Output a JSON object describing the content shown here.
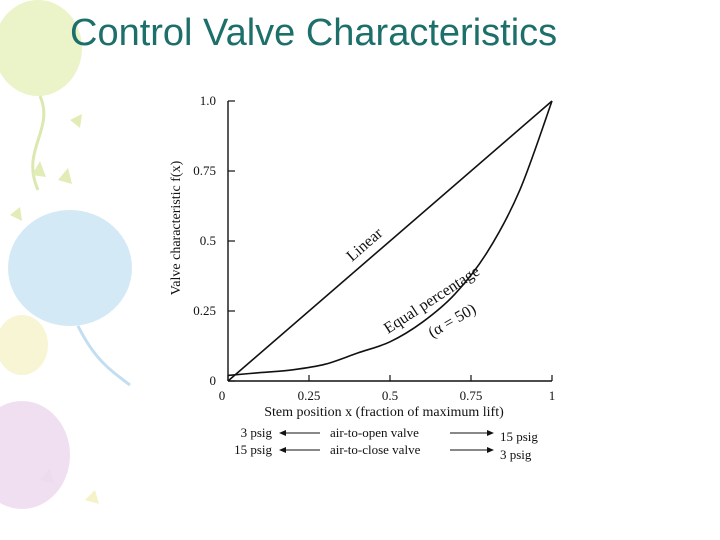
{
  "slide": {
    "title": "Control Valve Characteristics",
    "decoration_colors": {
      "green": "#e7f1bf",
      "blue": "#cfe7f5",
      "purple": "#eddcf0",
      "yellow": "#f5f2c8"
    }
  },
  "chart_data": {
    "type": "line",
    "title": "",
    "xlabel": "Stem position x (fraction of maximum lift)",
    "ylabel": "Valve characteristic f(x)",
    "xlim": [
      0,
      1
    ],
    "ylim": [
      0,
      1
    ],
    "x_ticks": [
      0,
      0.25,
      0.5,
      0.75,
      1
    ],
    "x_tick_labels": [
      "0",
      "0.25",
      "0.5",
      "0.75",
      "1"
    ],
    "y_ticks": [
      0,
      0.25,
      0.5,
      0.75,
      1.0
    ],
    "y_tick_labels": [
      "0",
      "0.25",
      "0.5",
      "0.75",
      "1.0"
    ],
    "grid": false,
    "series": [
      {
        "name": "Linear",
        "x": [
          0,
          1
        ],
        "y": [
          0,
          1
        ]
      },
      {
        "name": "Equal percentage",
        "x": [
          0,
          0.1,
          0.2,
          0.3,
          0.4,
          0.5,
          0.6,
          0.7,
          0.8,
          0.9,
          1.0
        ],
        "y": [
          0.02,
          0.03,
          0.04,
          0.06,
          0.1,
          0.14,
          0.21,
          0.31,
          0.46,
          0.68,
          1.0
        ]
      }
    ],
    "annotations": [
      {
        "text": "Linear",
        "series": 0
      },
      {
        "text": "Equal percentage",
        "series": 1
      },
      {
        "text": "(α = 50)",
        "series": 1
      }
    ],
    "signal_rows": [
      {
        "left": "3 psig",
        "middle": "air-to-open valve",
        "right": "15 psig"
      },
      {
        "left": "15 psig",
        "middle": "air-to-close valve",
        "right": "3 psig"
      }
    ]
  }
}
